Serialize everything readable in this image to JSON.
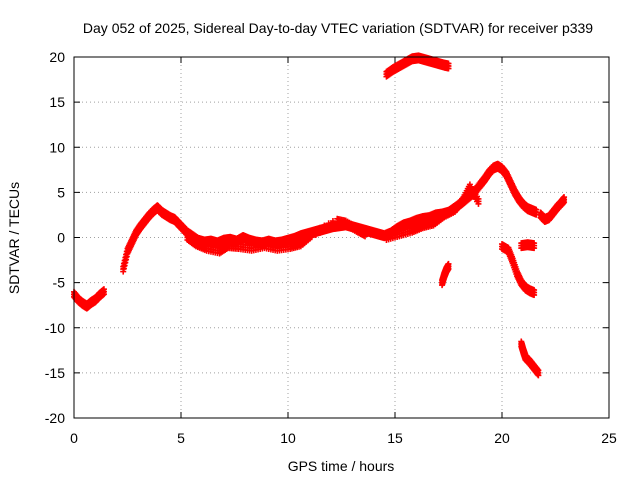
{
  "chart_data": {
    "type": "scatter",
    "title": "Day 052 of 2025, Sidereal Day-to-day VTEC variation (SDTVAR) for receiver p339",
    "xlabel": "GPS time / hours",
    "ylabel": "SDTVAR / TECUs",
    "xlim": [
      0,
      25
    ],
    "ylim": [
      -20,
      20
    ],
    "xticks": [
      "0",
      "5",
      "10",
      "15",
      "20",
      "25"
    ],
    "yticks": [
      "-20",
      "-15",
      "-10",
      "-5",
      "0",
      "5",
      "10",
      "15",
      "20"
    ],
    "grid": true,
    "marker": "plus",
    "color": "#ff0000",
    "series": [
      {
        "name": "seg1",
        "x": [
          0.0,
          0.2,
          0.4,
          0.6,
          0.8,
          1.0,
          1.2,
          1.4
        ],
        "y": [
          -6.3,
          -6.9,
          -7.3,
          -7.6,
          -7.2,
          -6.9,
          -6.4,
          -6.0
        ]
      },
      {
        "name": "seg2",
        "x": [
          2.3,
          2.5,
          2.7,
          2.9,
          3.1,
          3.3,
          3.5,
          3.7,
          3.9,
          4.1,
          4.3,
          4.5,
          4.7,
          4.9,
          5.1,
          5.3,
          5.5,
          5.8,
          6.1,
          6.4,
          6.7,
          7.0,
          7.3,
          7.6,
          7.9,
          8.2,
          8.5,
          8.8,
          9.1,
          9.4,
          9.7,
          10.0,
          10.3,
          10.6,
          10.9,
          11.2,
          11.5,
          11.8,
          12.1,
          12.4,
          12.7,
          13.0,
          13.3,
          13.6,
          13.9,
          14.2,
          14.5,
          14.8,
          15.1,
          15.4,
          15.7,
          16.0,
          16.3,
          16.6,
          16.9,
          17.2,
          17.5,
          17.8,
          18.1,
          18.4,
          18.7,
          19.0,
          19.2,
          19.4,
          19.6,
          19.8,
          20.0,
          20.2,
          20.4,
          20.6,
          20.8,
          21.0,
          21.2,
          21.4,
          21.6
        ],
        "y": [
          -3.5,
          -1.5,
          -0.5,
          0.5,
          1.2,
          1.8,
          2.4,
          2.9,
          3.3,
          2.8,
          2.5,
          2.2,
          2.0,
          1.5,
          1.0,
          0.5,
          0.2,
          -0.3,
          -0.5,
          -0.4,
          -0.6,
          -0.3,
          -0.2,
          -0.4,
          0.0,
          -0.3,
          -0.5,
          -0.6,
          -0.4,
          -0.6,
          -0.5,
          -0.3,
          -0.1,
          0.2,
          0.4,
          0.6,
          0.8,
          1.0,
          1.2,
          1.3,
          1.4,
          1.2,
          1.0,
          0.8,
          0.6,
          0.4,
          0.2,
          0.5,
          1.0,
          1.4,
          1.6,
          1.9,
          2.1,
          2.2,
          2.5,
          2.6,
          2.8,
          3.3,
          3.8,
          4.4,
          5.0,
          5.9,
          6.5,
          7.2,
          7.7,
          7.9,
          7.6,
          7.0,
          6.0,
          5.0,
          4.2,
          3.6,
          3.2,
          3.0,
          2.8
        ]
      },
      {
        "name": "seg2b",
        "x": [
          5.3,
          5.7,
          6.2,
          6.8,
          7.2,
          7.7,
          8.3,
          8.9,
          9.5,
          10.1,
          10.6,
          11.1,
          12.3,
          12.7,
          13.2,
          13.6
        ],
        "y": [
          0.0,
          -0.7,
          -1.2,
          -1.5,
          -0.9,
          -1.0,
          -1.2,
          -0.9,
          -1.2,
          -1.0,
          -0.7,
          0.3,
          1.8,
          1.6,
          0.9,
          0.4
        ]
      },
      {
        "name": "seg2c",
        "x": [
          14.6,
          15.2,
          15.8,
          16.3,
          16.8,
          17.3,
          17.8,
          18.2,
          18.5,
          18.9
        ],
        "y": [
          0.0,
          0.4,
          0.8,
          1.3,
          1.6,
          2.5,
          3.1,
          4.2,
          5.6,
          4.0
        ]
      },
      {
        "name": "seg3",
        "x": [
          14.6,
          14.9,
          15.2,
          15.5,
          15.8,
          16.1,
          16.4,
          16.7,
          17.0,
          17.3,
          17.5
        ],
        "y": [
          18.1,
          18.6,
          19.0,
          19.4,
          19.8,
          19.9,
          19.7,
          19.5,
          19.3,
          19.1,
          19.0
        ]
      },
      {
        "name": "seg4",
        "x": [
          17.2,
          17.3,
          17.4,
          17.5
        ],
        "y": [
          -5.0,
          -4.2,
          -3.6,
          -3.2
        ]
      },
      {
        "name": "seg5",
        "x": [
          20.0,
          20.3,
          20.5,
          20.7,
          20.9,
          21.1,
          21.3,
          21.5
        ],
        "y": [
          -1.0,
          -1.4,
          -2.6,
          -4.0,
          -5.0,
          -5.6,
          -5.9,
          -6.1
        ]
      },
      {
        "name": "seg6",
        "x": [
          20.9,
          21.2,
          21.5
        ],
        "y": [
          -0.9,
          -0.8,
          -0.9
        ]
      },
      {
        "name": "seg7",
        "x": [
          20.9,
          21.0,
          21.1,
          21.3,
          21.5,
          21.7
        ],
        "y": [
          -11.8,
          -12.6,
          -13.3,
          -13.8,
          -14.4,
          -15.0
        ]
      },
      {
        "name": "seg8",
        "x": [
          21.8,
          22.0,
          22.2,
          22.4,
          22.6,
          22.8,
          22.9
        ],
        "y": [
          2.5,
          2.0,
          2.2,
          2.8,
          3.4,
          3.9,
          4.2
        ]
      }
    ]
  }
}
